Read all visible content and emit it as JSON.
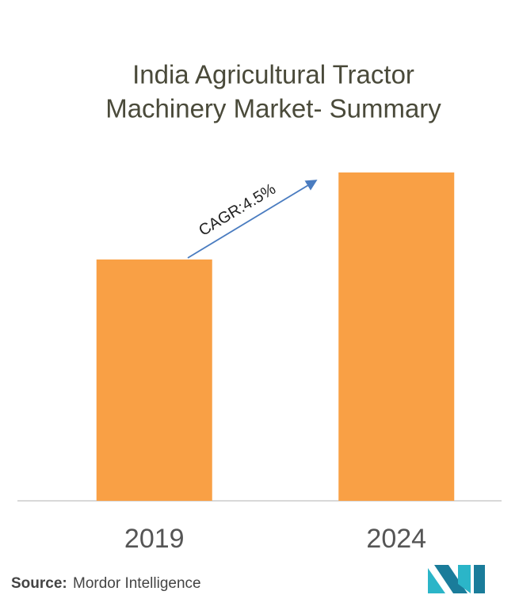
{
  "chart_data": {
    "type": "bar",
    "title": [
      "India Agricultural Tractor",
      "Machinery Market- Summary"
    ],
    "categories": [
      "2019",
      "2024"
    ],
    "values": [
      73.5,
      100
    ],
    "color": "#f9a045",
    "ylim": [
      0,
      100
    ],
    "annotation": "CAGR:4.5%",
    "source": {
      "label": "Source:",
      "text": "Mordor Intelligence"
    }
  }
}
